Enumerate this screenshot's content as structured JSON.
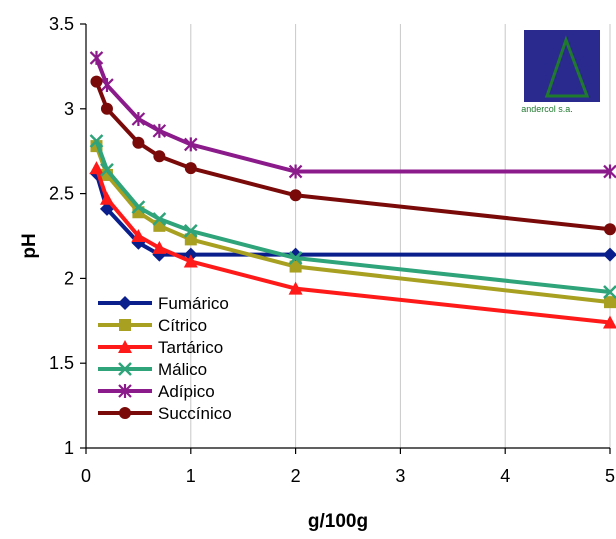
{
  "chart_data": {
    "type": "line",
    "title": "",
    "xlabel": "g/100g",
    "ylabel": "pH",
    "xlim": [
      0,
      5
    ],
    "ylim": [
      1,
      3.5
    ],
    "x_ticks": [
      "0",
      "1",
      "2",
      "3",
      "4",
      "5"
    ],
    "y_ticks": [
      "1",
      "1.5",
      "2",
      "2.5",
      "3",
      "3.5"
    ],
    "grid": "vertical",
    "legend_position": "bottom-left",
    "series": [
      {
        "name": "Fumárico",
        "color": "#0a1f8c",
        "marker": "diamond",
        "x": [
          0.1,
          0.2,
          0.5,
          0.7,
          1,
          2,
          5
        ],
        "y": [
          2.62,
          2.41,
          2.21,
          2.14,
          2.14,
          2.14,
          2.14
        ]
      },
      {
        "name": "Cítrico",
        "color": "#a8a020",
        "marker": "square",
        "x": [
          0.1,
          0.2,
          0.5,
          0.7,
          1,
          2,
          5
        ],
        "y": [
          2.78,
          2.61,
          2.39,
          2.31,
          2.23,
          2.07,
          1.86
        ]
      },
      {
        "name": "Tartárico",
        "color": "#ff1a1a",
        "marker": "triangle",
        "x": [
          0.1,
          0.2,
          0.5,
          0.7,
          1,
          2,
          5
        ],
        "y": [
          2.65,
          2.47,
          2.25,
          2.18,
          2.1,
          1.94,
          1.74
        ]
      },
      {
        "name": "Málico",
        "color": "#2fa37a",
        "marker": "x",
        "x": [
          0.1,
          0.2,
          0.5,
          0.7,
          1,
          2,
          5
        ],
        "y": [
          2.81,
          2.64,
          2.42,
          2.35,
          2.28,
          2.12,
          1.92
        ]
      },
      {
        "name": "Adípico",
        "color": "#8b1a8b",
        "marker": "star",
        "x": [
          0.1,
          0.2,
          0.5,
          0.7,
          1,
          2,
          5
        ],
        "y": [
          3.3,
          3.14,
          2.94,
          2.87,
          2.79,
          2.63,
          2.63
        ]
      },
      {
        "name": "Succínico",
        "color": "#7a0a0a",
        "marker": "circle",
        "x": [
          0.1,
          0.2,
          0.5,
          0.7,
          1,
          2,
          5
        ],
        "y": [
          3.16,
          3.0,
          2.8,
          2.72,
          2.65,
          2.49,
          2.29
        ]
      }
    ]
  },
  "logo": {
    "text": "andercol s.a.",
    "colors": {
      "background": "#2a2a8e",
      "triangle": "#1f7a2e"
    }
  }
}
